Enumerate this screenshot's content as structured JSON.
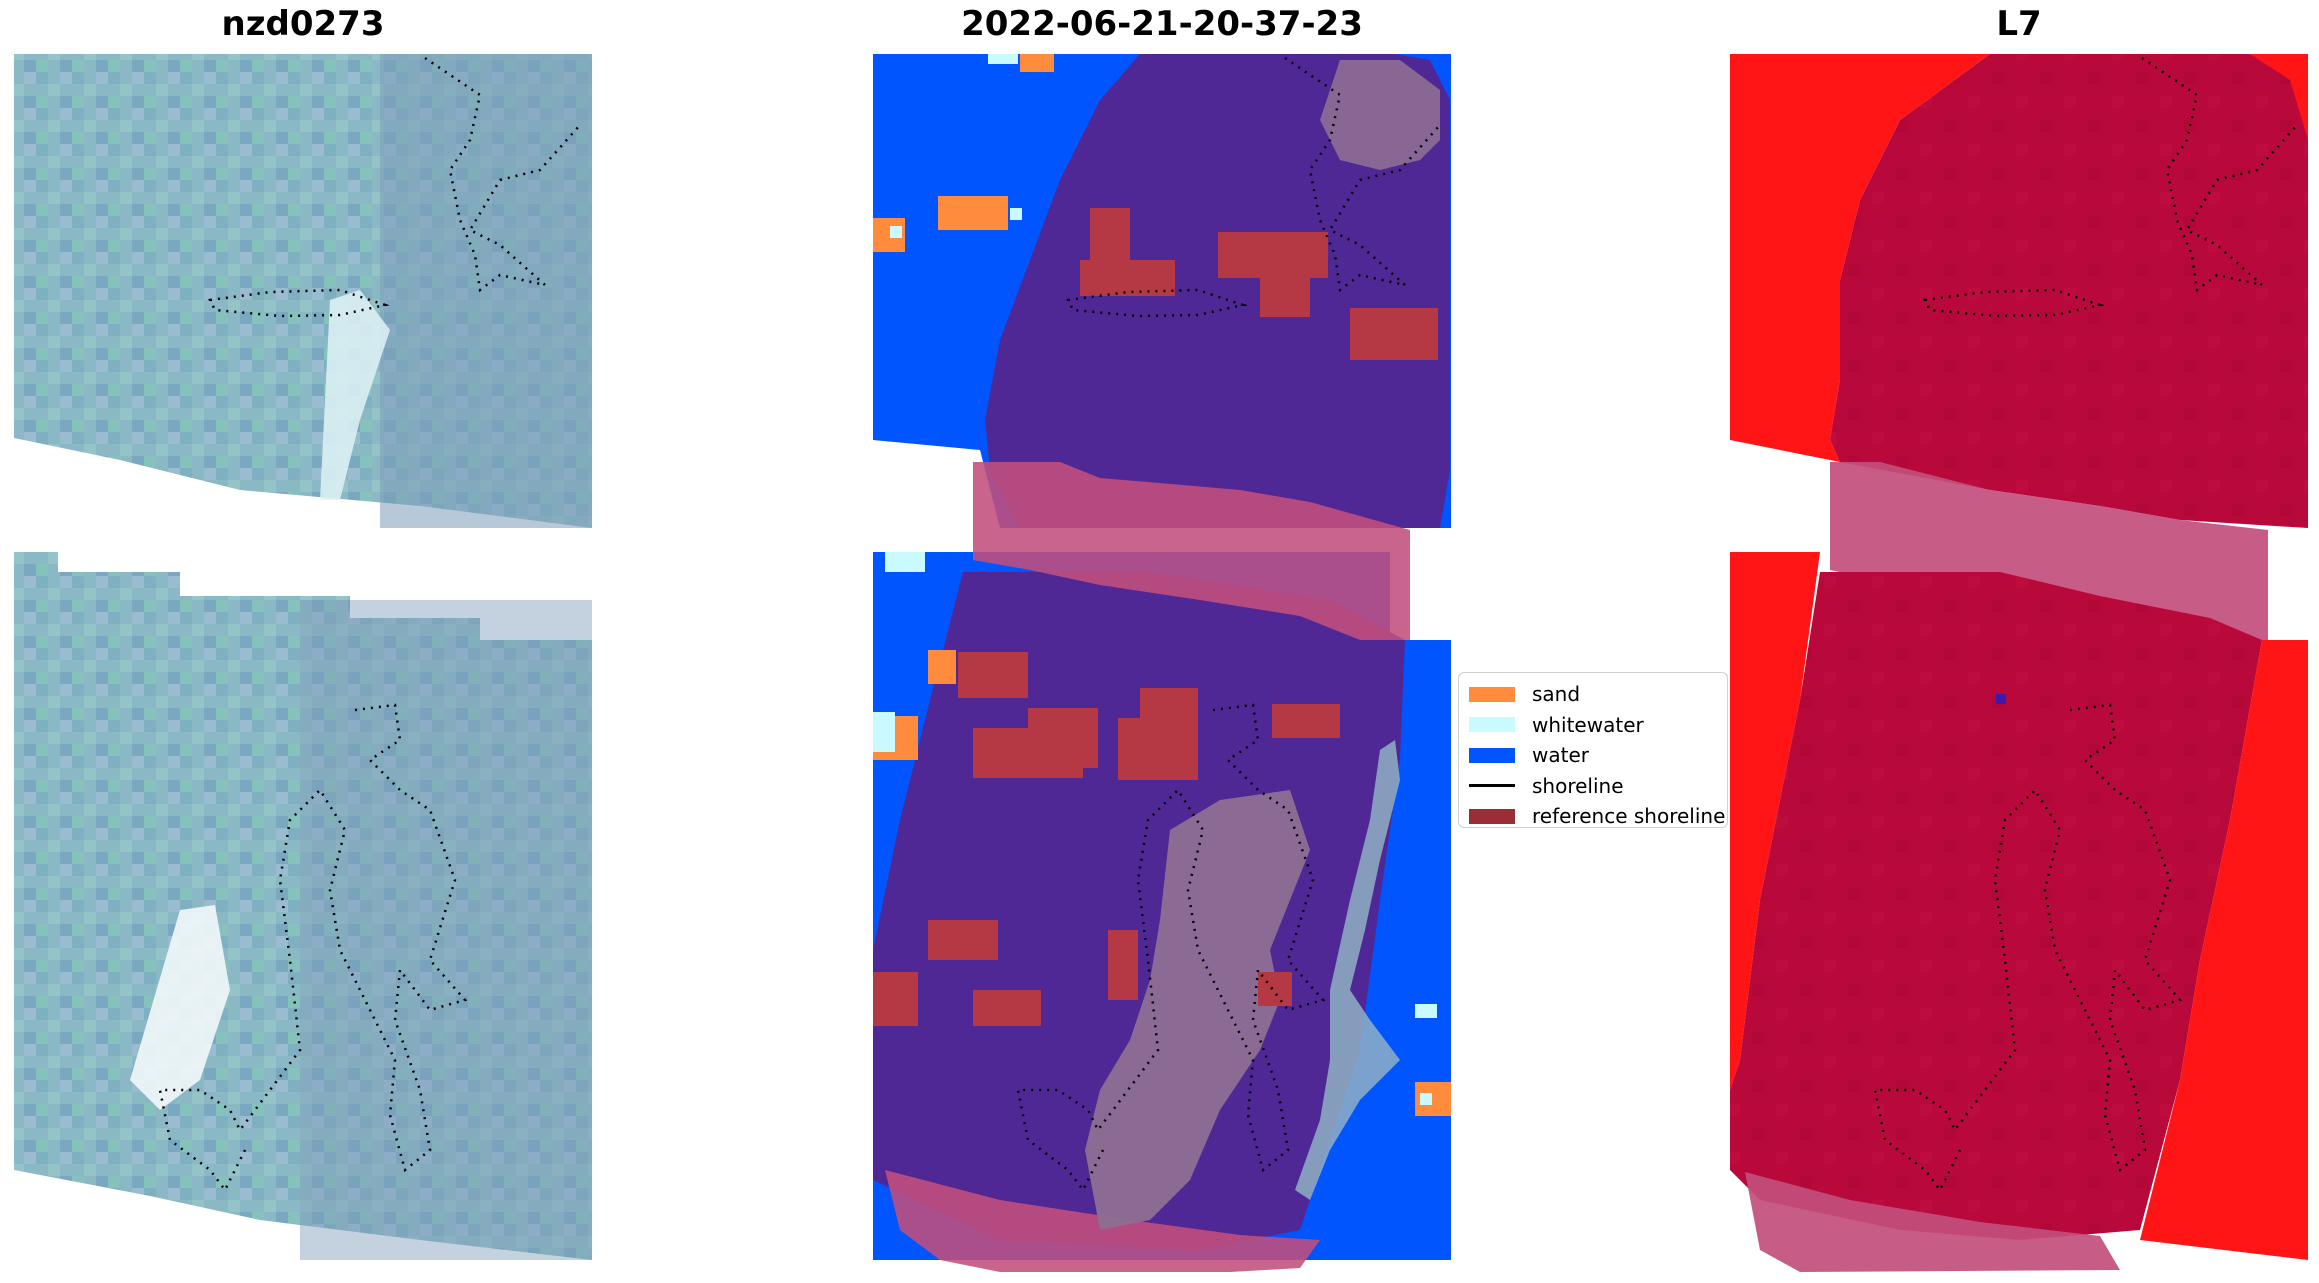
{
  "titles": {
    "left": "nzd0273",
    "middle": "2022-06-21-20-37-23",
    "right": "L7"
  },
  "legend": {
    "items": [
      {
        "label": "sand",
        "color": "#ff8c3c",
        "kind": "patch"
      },
      {
        "label": "whitewater",
        "color": "#c8faff",
        "kind": "patch"
      },
      {
        "label": "water",
        "color": "#0055ff",
        "kind": "patch"
      },
      {
        "label": "shoreline",
        "color": "#000000",
        "kind": "line"
      },
      {
        "label": "reference shoreline",
        "color": "#9b2d37",
        "kind": "patch"
      }
    ]
  },
  "colors": {
    "rgb_base": "#8ab8c4",
    "class_background": "#502896",
    "water": "#0055ff",
    "sand": "#ff8c3c",
    "whitewater": "#c8faff",
    "reference_overlay": "#c24f7c",
    "index_land": "#b8093a",
    "index_water": "#ff1515"
  }
}
